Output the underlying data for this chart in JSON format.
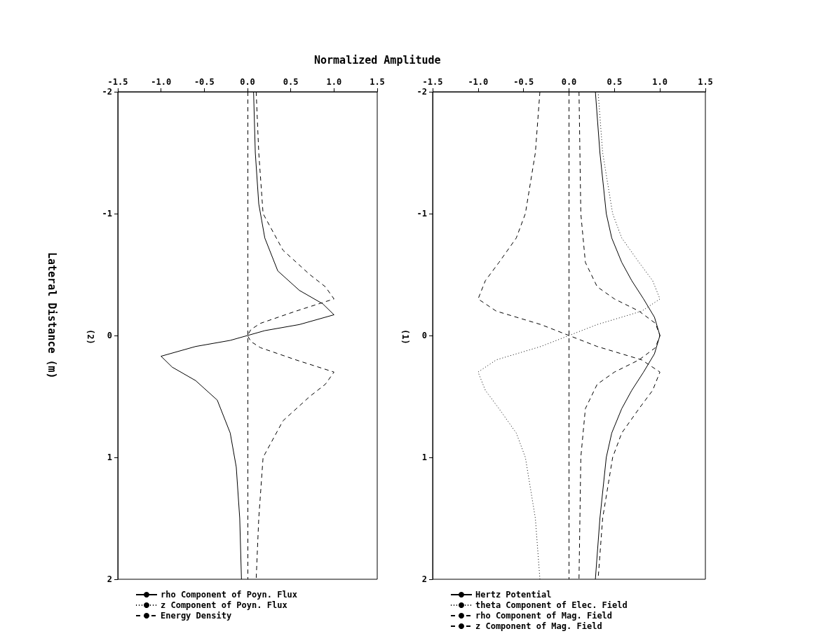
{
  "chart_data": [
    {
      "type": "line",
      "xlabel": "Normalized Amplitude",
      "ylabel": "Lateral Distance (m)",
      "annotations": [
        "(2)"
      ],
      "ylim": [
        2,
        -2
      ],
      "yticks": [
        -2,
        -1,
        0,
        1,
        2
      ],
      "xlim": [
        -1.5,
        1.5
      ],
      "xticks": [
        -1.5,
        {
          "value": -1,
          "label": "-1.0"
        },
        {
          "value": -0.5,
          "label": "-0.5"
        },
        {
          "value": 0,
          "label": "0.0"
        },
        {
          "value": 0.5,
          "label": "0.5"
        },
        {
          "value": 1,
          "label": "1.0"
        },
        {
          "value": 1.5,
          "label": "1.5"
        }
      ],
      "grid": false,
      "legend": "bottom",
      "marker": "none",
      "ref_lines": [
        {
          "axis": "x",
          "value": 0,
          "color": "#000000",
          "line_style": "dashed"
        }
      ],
      "series": [
        {
          "name": "rho Component of Poyn. Flux",
          "color": "#000000",
          "line_style": "solid",
          "values": [
            -2,
            -1.5,
            -1.08,
            -0.8,
            -0.53,
            -0.37,
            -0.26,
            -0.17,
            -0.09,
            -0.04,
            0,
            0.04,
            0.09,
            0.17,
            0.26,
            0.37,
            0.53,
            0.8,
            1.08,
            1.5,
            2
          ],
          "x": [
            0.07,
            0.09,
            0.13,
            0.2,
            0.35,
            0.6,
            0.87,
            1.0,
            0.6,
            0.2,
            0,
            -0.2,
            -0.6,
            -1.0,
            -0.87,
            -0.6,
            -0.35,
            -0.2,
            -0.13,
            -0.09,
            -0.07
          ]
        },
        {
          "name": "z Component of Poyn. Flux",
          "color": "#000000",
          "line_style": "dotted",
          "values": [
            null,
            null
          ],
          "x": [
            null,
            null
          ]
        },
        {
          "name": "Energy Density",
          "color": "#000000",
          "line_style": "dashed",
          "values": [
            -2,
            -1.5,
            -1,
            -0.7,
            -0.5,
            -0.4,
            -0.3,
            -0.2,
            -0.1,
            -0.05,
            0,
            0.05,
            0.1,
            0.2,
            0.3,
            0.4,
            0.5,
            0.7,
            1,
            1.5,
            2
          ],
          "x": [
            0.1,
            0.13,
            0.18,
            0.41,
            0.72,
            0.9,
            1.0,
            0.56,
            0.15,
            0.04,
            0,
            0.04,
            0.15,
            0.56,
            1.0,
            0.9,
            0.72,
            0.41,
            0.18,
            0.13,
            0.1
          ]
        }
      ]
    },
    {
      "type": "line",
      "annotations": [
        "(1)"
      ],
      "ylim": [
        2,
        -2
      ],
      "yticks": [
        -2,
        -1,
        0,
        1,
        2
      ],
      "xlim": [
        -1.5,
        1.5
      ],
      "xticks": [
        -1.5,
        {
          "value": -1,
          "label": "-1.0"
        },
        {
          "value": -0.5,
          "label": "-0.5"
        },
        {
          "value": 0,
          "label": "0.0"
        },
        {
          "value": 0.5,
          "label": "0.5"
        },
        {
          "value": 1,
          "label": "1.0"
        },
        {
          "value": 1.5,
          "label": "1.5"
        }
      ],
      "grid": false,
      "legend": "bottom",
      "marker": "none",
      "ref_lines": [
        {
          "axis": "x",
          "value": 0,
          "color": "#000000",
          "line_style": "dashed"
        }
      ],
      "series": [
        {
          "name": "Hertz Potential",
          "color": "#000000",
          "line_style": "solid",
          "values": [
            -2,
            -1.5,
            -1,
            -0.8,
            -0.6,
            -0.45,
            -0.3,
            -0.15,
            0,
            0.15,
            0.3,
            0.45,
            0.6,
            0.8,
            1,
            1.5,
            2
          ],
          "x": [
            0.29,
            0.34,
            0.41,
            0.47,
            0.58,
            0.69,
            0.82,
            0.94,
            1.0,
            0.94,
            0.82,
            0.69,
            0.58,
            0.47,
            0.41,
            0.34,
            0.29
          ]
        },
        {
          "name": "theta Component of Elec. Field",
          "color": "#000000",
          "line_style": "dotted",
          "values": [
            -2,
            -1.5,
            -1,
            -0.8,
            -0.6,
            -0.45,
            -0.3,
            -0.2,
            -0.09,
            0,
            0.09,
            0.2,
            0.3,
            0.45,
            0.6,
            0.8,
            1,
            1.5,
            2
          ],
          "x": [
            0.32,
            0.37,
            0.48,
            0.58,
            0.77,
            0.92,
            1.0,
            0.8,
            0.31,
            0,
            -0.31,
            -0.8,
            -1.0,
            -0.92,
            -0.77,
            -0.58,
            -0.48,
            -0.37,
            -0.32
          ]
        },
        {
          "name": "rho Component of Mag. Field",
          "color": "#000000",
          "line_style": "dashed",
          "values": [
            -2,
            -1.5,
            -1,
            -0.8,
            -0.6,
            -0.45,
            -0.3,
            -0.2,
            -0.09,
            0,
            0.09,
            0.2,
            0.3,
            0.45,
            0.6,
            0.8,
            1,
            1.5,
            2
          ],
          "x": [
            -0.32,
            -0.37,
            -0.48,
            -0.58,
            -0.77,
            -0.92,
            -1.0,
            -0.8,
            -0.31,
            0,
            0.31,
            0.8,
            1.0,
            0.92,
            0.77,
            0.58,
            0.48,
            0.37,
            0.32
          ]
        },
        {
          "name": "z Component of Mag. Field",
          "color": "#000000",
          "line_style": "dashed",
          "values": [
            -2,
            -1.5,
            -1,
            -0.6,
            -0.4,
            -0.3,
            -0.2,
            -0.1,
            0,
            0.1,
            0.2,
            0.3,
            0.4,
            0.6,
            1,
            1.5,
            2
          ],
          "x": [
            0.11,
            0.12,
            0.13,
            0.18,
            0.31,
            0.5,
            0.77,
            0.95,
            1.0,
            0.95,
            0.77,
            0.5,
            0.31,
            0.18,
            0.13,
            0.12,
            0.11
          ]
        }
      ]
    }
  ]
}
